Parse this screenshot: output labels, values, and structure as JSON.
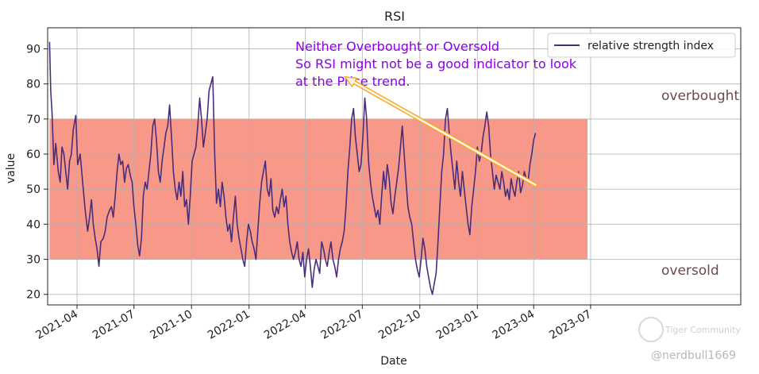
{
  "chart_data": {
    "type": "line",
    "title": "RSI",
    "xlabel": "Date",
    "ylabel": "value",
    "ylim": [
      17,
      96
    ],
    "yticks": [
      20,
      30,
      40,
      50,
      60,
      70,
      80,
      90
    ],
    "x_range_days": [
      -47,
      1061
    ],
    "xticks": [
      {
        "label": "2021-04",
        "day": 0
      },
      {
        "label": "2021-07",
        "day": 91
      },
      {
        "label": "2021-10",
        "day": 183
      },
      {
        "label": "2022-01",
        "day": 275
      },
      {
        "label": "2022-04",
        "day": 365
      },
      {
        "label": "2022-07",
        "day": 456
      },
      {
        "label": "2022-10",
        "day": 548
      },
      {
        "label": "2023-01",
        "day": 640
      },
      {
        "label": "2023-04",
        "day": 730
      },
      {
        "label": "2023-07",
        "day": 821
      }
    ],
    "band": {
      "low": 30,
      "high": 70,
      "start_day": -44,
      "end_day": 816,
      "color": "#f78f7f"
    },
    "series": [
      {
        "name": "relative strength index",
        "color": "#4a2d7a",
        "points": [
          [
            -44,
            92
          ],
          [
            -42,
            78
          ],
          [
            -40,
            72
          ],
          [
            -37,
            57
          ],
          [
            -34,
            63
          ],
          [
            -30,
            55
          ],
          [
            -27,
            52
          ],
          [
            -24,
            62
          ],
          [
            -21,
            60
          ],
          [
            -18,
            55
          ],
          [
            -15,
            50
          ],
          [
            -12,
            58
          ],
          [
            -9,
            60
          ],
          [
            -6,
            67
          ],
          [
            -2,
            71
          ],
          [
            1,
            57
          ],
          [
            5,
            60
          ],
          [
            9,
            52
          ],
          [
            13,
            44
          ],
          [
            17,
            38
          ],
          [
            20,
            42
          ],
          [
            23,
            47
          ],
          [
            26,
            40
          ],
          [
            29,
            36
          ],
          [
            32,
            33
          ],
          [
            35,
            28
          ],
          [
            38,
            35
          ],
          [
            42,
            36
          ],
          [
            45,
            38
          ],
          [
            48,
            42
          ],
          [
            52,
            44
          ],
          [
            55,
            45
          ],
          [
            58,
            42
          ],
          [
            61,
            48
          ],
          [
            64,
            55
          ],
          [
            67,
            60
          ],
          [
            70,
            57
          ],
          [
            73,
            58
          ],
          [
            76,
            52
          ],
          [
            79,
            56
          ],
          [
            82,
            57
          ],
          [
            85,
            54
          ],
          [
            88,
            52
          ],
          [
            91,
            45
          ],
          [
            94,
            40
          ],
          [
            97,
            34
          ],
          [
            100,
            31
          ],
          [
            103,
            36
          ],
          [
            106,
            48
          ],
          [
            109,
            52
          ],
          [
            112,
            50
          ],
          [
            115,
            55
          ],
          [
            118,
            60
          ],
          [
            121,
            68
          ],
          [
            124,
            70
          ],
          [
            127,
            64
          ],
          [
            130,
            55
          ],
          [
            133,
            52
          ],
          [
            136,
            58
          ],
          [
            139,
            62
          ],
          [
            142,
            66
          ],
          [
            145,
            68
          ],
          [
            148,
            74
          ],
          [
            151,
            65
          ],
          [
            154,
            55
          ],
          [
            157,
            50
          ],
          [
            160,
            47
          ],
          [
            163,
            52
          ],
          [
            166,
            48
          ],
          [
            169,
            55
          ],
          [
            172,
            45
          ],
          [
            175,
            47
          ],
          [
            178,
            40
          ],
          [
            181,
            48
          ],
          [
            184,
            58
          ],
          [
            187,
            60
          ],
          [
            190,
            62
          ],
          [
            193,
            68
          ],
          [
            196,
            76
          ],
          [
            199,
            70
          ],
          [
            202,
            62
          ],
          [
            205,
            66
          ],
          [
            208,
            70
          ],
          [
            211,
            78
          ],
          [
            214,
            80
          ],
          [
            217,
            82
          ],
          [
            220,
            60
          ],
          [
            223,
            46
          ],
          [
            226,
            50
          ],
          [
            229,
            45
          ],
          [
            232,
            52
          ],
          [
            235,
            48
          ],
          [
            238,
            42
          ],
          [
            241,
            38
          ],
          [
            244,
            40
          ],
          [
            247,
            35
          ],
          [
            250,
            42
          ],
          [
            253,
            48
          ],
          [
            256,
            40
          ],
          [
            259,
            36
          ],
          [
            262,
            33
          ],
          [
            265,
            30
          ],
          [
            268,
            28
          ],
          [
            271,
            35
          ],
          [
            274,
            40
          ],
          [
            277,
            38
          ],
          [
            280,
            35
          ],
          [
            283,
            33
          ],
          [
            286,
            30
          ],
          [
            289,
            38
          ],
          [
            292,
            46
          ],
          [
            295,
            52
          ],
          [
            298,
            55
          ],
          [
            301,
            58
          ],
          [
            304,
            50
          ],
          [
            307,
            48
          ],
          [
            310,
            53
          ],
          [
            313,
            44
          ],
          [
            316,
            42
          ],
          [
            319,
            45
          ],
          [
            322,
            43
          ],
          [
            325,
            47
          ],
          [
            328,
            50
          ],
          [
            331,
            45
          ],
          [
            334,
            48
          ],
          [
            337,
            40
          ],
          [
            340,
            35
          ],
          [
            343,
            32
          ],
          [
            346,
            30
          ],
          [
            349,
            32
          ],
          [
            352,
            35
          ],
          [
            355,
            30
          ],
          [
            358,
            28
          ],
          [
            361,
            32
          ],
          [
            364,
            25
          ],
          [
            367,
            30
          ],
          [
            370,
            33
          ],
          [
            373,
            28
          ],
          [
            376,
            22
          ],
          [
            379,
            27
          ],
          [
            382,
            30
          ],
          [
            385,
            28
          ],
          [
            388,
            26
          ],
          [
            391,
            35
          ],
          [
            394,
            33
          ],
          [
            397,
            30
          ],
          [
            400,
            28
          ],
          [
            403,
            32
          ],
          [
            406,
            35
          ],
          [
            409,
            30
          ],
          [
            412,
            28
          ],
          [
            415,
            25
          ],
          [
            418,
            30
          ],
          [
            421,
            33
          ],
          [
            424,
            35
          ],
          [
            427,
            38
          ],
          [
            430,
            45
          ],
          [
            433,
            55
          ],
          [
            436,
            62
          ],
          [
            439,
            70
          ],
          [
            442,
            73
          ],
          [
            445,
            65
          ],
          [
            448,
            60
          ],
          [
            451,
            55
          ],
          [
            454,
            57
          ],
          [
            457,
            65
          ],
          [
            460,
            76
          ],
          [
            463,
            70
          ],
          [
            466,
            58
          ],
          [
            469,
            52
          ],
          [
            472,
            48
          ],
          [
            475,
            45
          ],
          [
            478,
            42
          ],
          [
            481,
            44
          ],
          [
            484,
            40
          ],
          [
            487,
            48
          ],
          [
            490,
            55
          ],
          [
            493,
            50
          ],
          [
            496,
            57
          ],
          [
            499,
            53
          ],
          [
            502,
            46
          ],
          [
            505,
            43
          ],
          [
            508,
            48
          ],
          [
            511,
            52
          ],
          [
            514,
            56
          ],
          [
            517,
            62
          ],
          [
            520,
            68
          ],
          [
            523,
            60
          ],
          [
            526,
            52
          ],
          [
            529,
            45
          ],
          [
            532,
            42
          ],
          [
            535,
            40
          ],
          [
            538,
            35
          ],
          [
            541,
            30
          ],
          [
            544,
            27
          ],
          [
            547,
            25
          ],
          [
            550,
            30
          ],
          [
            553,
            36
          ],
          [
            556,
            33
          ],
          [
            559,
            28
          ],
          [
            562,
            25
          ],
          [
            565,
            22
          ],
          [
            568,
            20
          ],
          [
            571,
            23
          ],
          [
            574,
            26
          ],
          [
            577,
            35
          ],
          [
            580,
            45
          ],
          [
            583,
            55
          ],
          [
            586,
            60
          ],
          [
            589,
            70
          ],
          [
            592,
            73
          ],
          [
            595,
            66
          ],
          [
            598,
            60
          ],
          [
            601,
            55
          ],
          [
            604,
            50
          ],
          [
            607,
            58
          ],
          [
            610,
            52
          ],
          [
            613,
            48
          ],
          [
            616,
            55
          ],
          [
            619,
            50
          ],
          [
            622,
            45
          ],
          [
            625,
            40
          ],
          [
            628,
            37
          ],
          [
            631,
            45
          ],
          [
            634,
            50
          ],
          [
            637,
            55
          ],
          [
            640,
            62
          ],
          [
            643,
            58
          ],
          [
            646,
            60
          ],
          [
            649,
            65
          ],
          [
            652,
            68
          ],
          [
            655,
            72
          ],
          [
            658,
            68
          ],
          [
            661,
            60
          ],
          [
            664,
            55
          ],
          [
            667,
            50
          ],
          [
            670,
            54
          ],
          [
            673,
            52
          ],
          [
            676,
            50
          ],
          [
            679,
            55
          ],
          [
            682,
            52
          ],
          [
            685,
            48
          ],
          [
            688,
            50
          ],
          [
            691,
            47
          ],
          [
            694,
            53
          ],
          [
            697,
            50
          ],
          [
            700,
            48
          ],
          [
            703,
            52
          ],
          [
            706,
            55
          ],
          [
            709,
            49
          ],
          [
            712,
            51
          ],
          [
            715,
            55
          ],
          [
            718,
            53
          ],
          [
            721,
            52
          ],
          [
            724,
            57
          ],
          [
            727,
            60
          ],
          [
            730,
            64
          ],
          [
            733,
            66
          ]
        ]
      }
    ],
    "legend": {
      "entry": "relative strength index",
      "position": "top-right"
    },
    "annotations": {
      "note_lines": [
        "Neither Overbought or Oversold",
        "So RSI might not be a good indicator to look",
        "at the Price trend."
      ],
      "note_color": "#8a00e6",
      "arrow_from": {
        "day": 735,
        "value": 51
      },
      "arrow_to": {
        "day": 428,
        "value": 82
      },
      "arrow_color": "#f5a623",
      "overbought_label": "overbought",
      "oversold_label": "oversold",
      "band_label_color": "#6b4a4a"
    }
  },
  "watermark": {
    "brand": "Tiger Community",
    "user": "@nerdbull1669"
  }
}
